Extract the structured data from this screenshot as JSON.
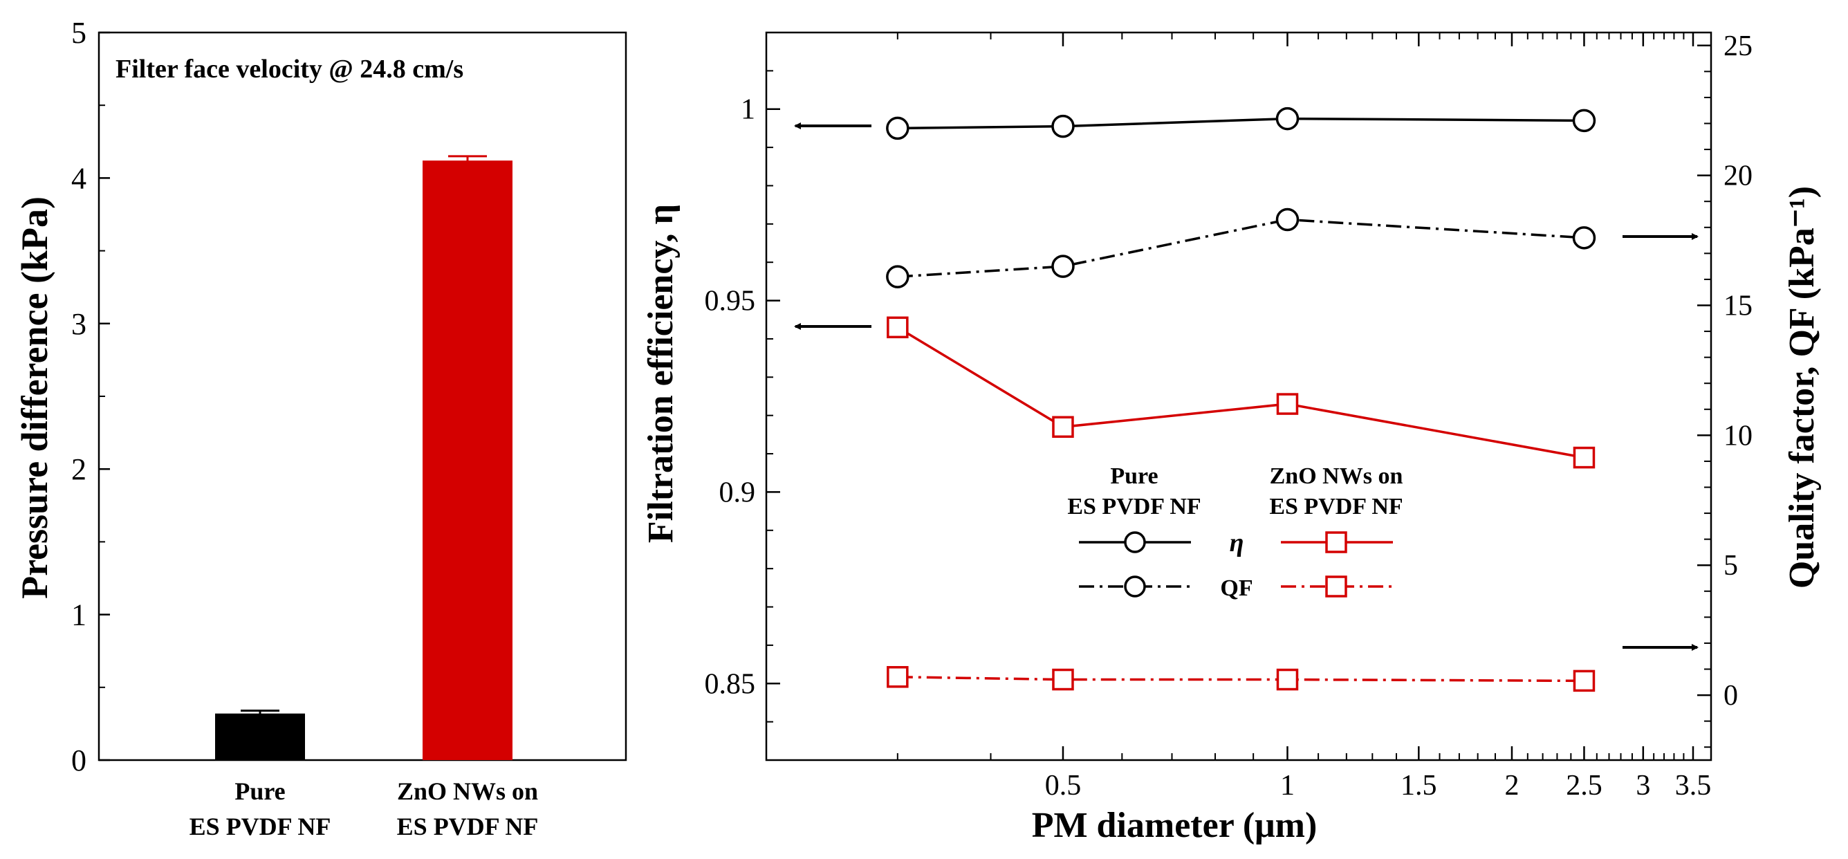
{
  "colors": {
    "black": "#000000",
    "red": "#d40000"
  },
  "chart_data": [
    {
      "type": "bar",
      "title": "Filter face velocity @ 24.8 cm/s",
      "xlabel": "",
      "ylabel": "Pressure difference (kPa)",
      "categories": [
        {
          "line1": "Pure",
          "line2": "ES PVDF NF"
        },
        {
          "line1": "ZnO NWs on",
          "line2": "ES PVDF NF"
        }
      ],
      "values": [
        0.32,
        4.12
      ],
      "errors": [
        0.02,
        0.03
      ],
      "ylim": [
        0,
        5
      ],
      "yticks": [
        "0",
        "1",
        "2",
        "3",
        "4",
        "5"
      ]
    },
    {
      "type": "line",
      "xscale": "log",
      "xlabel": "PM diameter (μm)",
      "ylabel_left": "Filtration efficiency, η",
      "ylabel_right": "Quality factor, QF (kPa⁻¹)",
      "ylim_left": [
        0.83,
        1.02
      ],
      "ylim_right": [
        -2.5,
        25.5
      ],
      "xlim": [
        0.2,
        3.7
      ],
      "xtick_labels": [
        "0.5",
        "1",
        "1.5",
        "2",
        "2.5",
        "3",
        "3.5"
      ],
      "ytick_left_labels": [
        "0.85",
        "0.9",
        "0.95",
        "1"
      ],
      "ytick_right_labels": [
        "0",
        "5",
        "10",
        "15",
        "20",
        "25"
      ],
      "x": [
        0.3,
        0.5,
        1.0,
        2.5
      ],
      "series": [
        {
          "name": "Pure ES PVDF NF η",
          "axis": "left",
          "values": [
            0.995,
            0.9955,
            0.9975,
            0.997
          ],
          "color": "#000000",
          "marker": "circle",
          "line": "solid"
        },
        {
          "name": "Pure ES PVDF NF QF",
          "axis": "right",
          "values": [
            16.1,
            16.5,
            18.3,
            17.6
          ],
          "color": "#000000",
          "marker": "circle",
          "line": "dashdot"
        },
        {
          "name": "ZnO NWs on ES PVDF NF η",
          "axis": "left",
          "values": [
            0.943,
            0.917,
            0.923,
            0.909
          ],
          "color": "#d40000",
          "marker": "square",
          "line": "solid"
        },
        {
          "name": "ZnO NWs on ES PVDF NF QF",
          "axis": "right",
          "values": [
            0.7,
            0.6,
            0.6,
            0.55
          ],
          "color": "#d40000",
          "marker": "square",
          "line": "dashdot"
        }
      ],
      "legend": {
        "headers": [
          {
            "line1": "Pure",
            "line2": "ES PVDF NF"
          },
          {
            "line1": "ZnO NWs on",
            "line2": "ES PVDF NF"
          }
        ],
        "rows": [
          "η",
          "QF"
        ]
      }
    }
  ]
}
